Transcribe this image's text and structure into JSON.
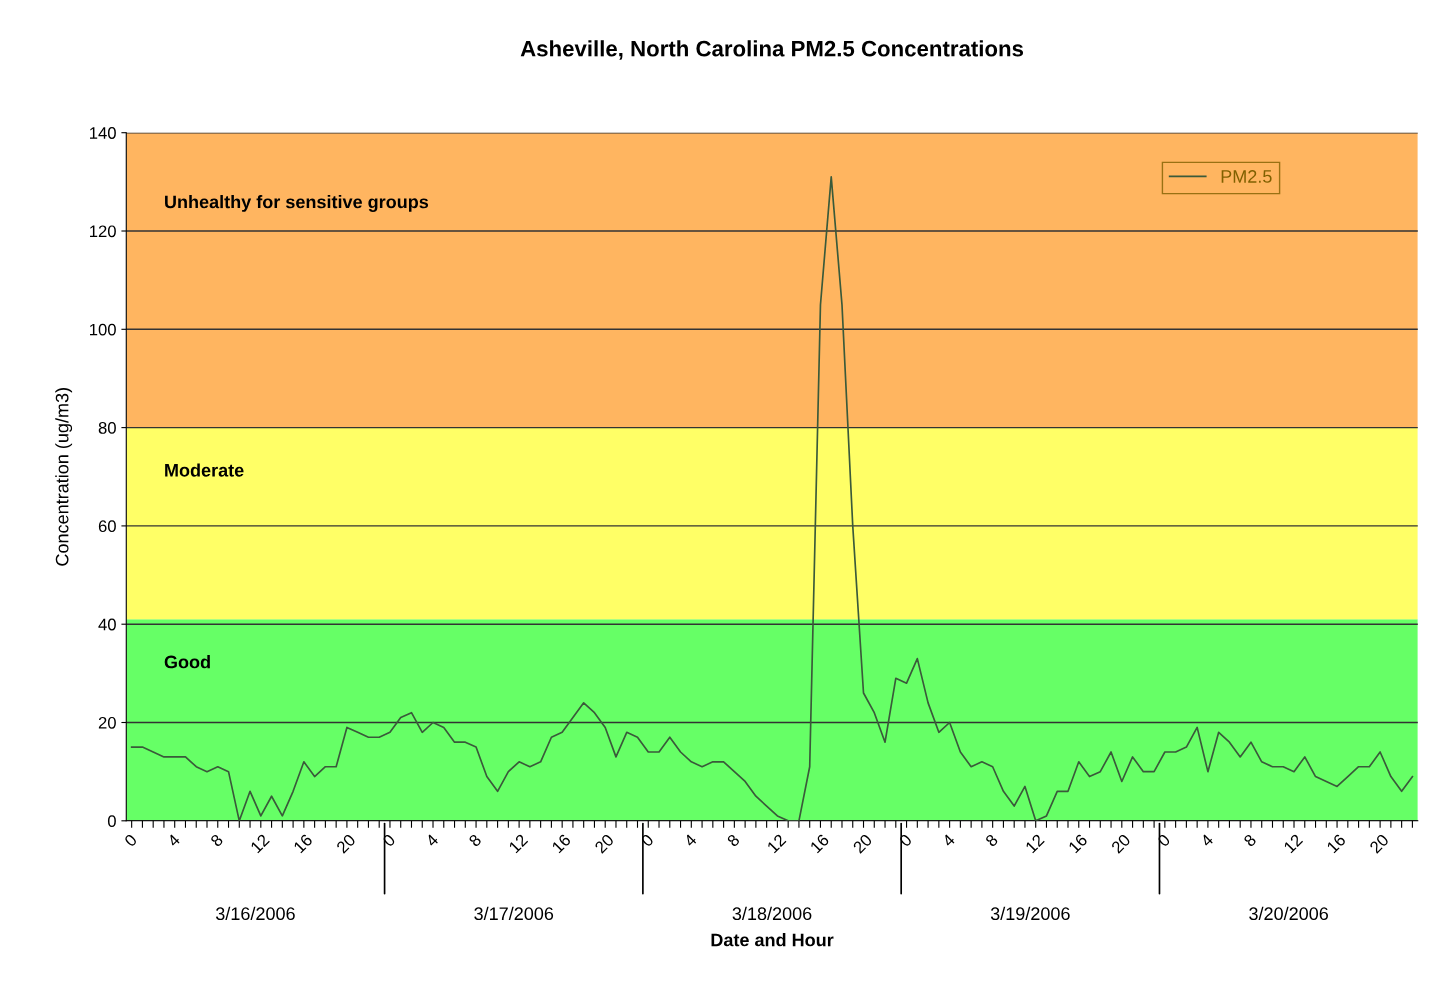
{
  "chart_data": {
    "type": "line",
    "title": "Asheville, North Carolina PM2.5 Concentrations",
    "xlabel": "Date and Hour",
    "ylabel": "Concentration (ug/m3)",
    "categories": [
      "0",
      null,
      null,
      null,
      "4",
      null,
      null,
      null,
      "8",
      null,
      null,
      null,
      "12",
      null,
      null,
      null,
      "16",
      null,
      null,
      null,
      "20",
      null,
      null,
      null,
      "0",
      null,
      null,
      null,
      "4",
      null,
      null,
      null,
      "8",
      null,
      null,
      null,
      "12",
      null,
      null,
      null,
      "16",
      null,
      null,
      null,
      "20",
      null,
      null,
      null,
      "0",
      null,
      null,
      null,
      "4",
      null,
      null,
      null,
      "8",
      null,
      null,
      null,
      "12",
      null,
      null,
      null,
      "16",
      null,
      null,
      null,
      "20",
      null,
      null,
      null,
      "0",
      null,
      null,
      null,
      "4",
      null,
      null,
      null,
      "8",
      null,
      null,
      null,
      "12",
      null,
      null,
      null,
      "16",
      null,
      null,
      null,
      "20",
      null,
      null,
      null,
      "0",
      null,
      null,
      null,
      "4",
      null,
      null,
      null,
      "8",
      null,
      null,
      null,
      "12",
      null,
      null,
      null,
      "16",
      null,
      null,
      null,
      "20",
      null,
      null,
      null
    ],
    "series": [
      {
        "name": "PM2.5",
        "color": "#3a5a3a",
        "values": [
          15,
          15,
          14,
          13,
          13,
          13,
          11,
          10,
          11,
          10,
          0,
          6,
          1,
          5,
          1,
          6,
          12,
          9,
          11,
          11,
          19,
          18,
          17,
          17,
          18,
          21,
          22,
          18,
          20,
          19,
          16,
          16,
          15,
          9,
          6,
          10,
          12,
          11,
          12,
          17,
          18,
          21,
          24,
          22,
          19,
          13,
          18,
          17,
          14,
          14,
          17,
          14,
          12,
          11,
          12,
          12,
          10,
          8,
          5,
          3,
          1,
          0,
          0,
          11,
          105,
          131,
          105,
          60,
          26,
          22,
          16,
          29,
          28,
          33,
          24,
          18,
          20,
          14,
          11,
          12,
          11,
          6,
          3,
          7,
          0,
          1,
          6,
          6,
          12,
          9,
          10,
          14,
          8,
          13,
          10,
          10,
          14,
          14,
          15,
          19,
          10,
          18,
          16,
          13,
          16,
          12,
          11,
          11,
          10,
          13,
          9,
          8,
          7,
          9,
          11,
          11,
          14,
          9,
          6,
          9
        ]
      }
    ],
    "ylim": [
      0,
      140
    ],
    "yticks": [
      0,
      20,
      40,
      60,
      80,
      100,
      120,
      140
    ],
    "grid": "y",
    "legend": "top right",
    "line_style": "solid",
    "marker": "none",
    "bands": [
      {
        "axis": "y",
        "from": 0,
        "to": 41,
        "label": "Good",
        "color": "#66ff66"
      },
      {
        "axis": "y",
        "from": 41,
        "to": 80,
        "label": "Moderate",
        "color": "#ffff66"
      },
      {
        "axis": "y",
        "from": 80,
        "to": 140,
        "label": "Unhealthy for sensitive groups",
        "color": "#ffb560"
      }
    ],
    "annotations": [
      "3/16/2006",
      "3/17/2006",
      "3/18/2006",
      "3/19/2006",
      "3/20/2006"
    ]
  }
}
